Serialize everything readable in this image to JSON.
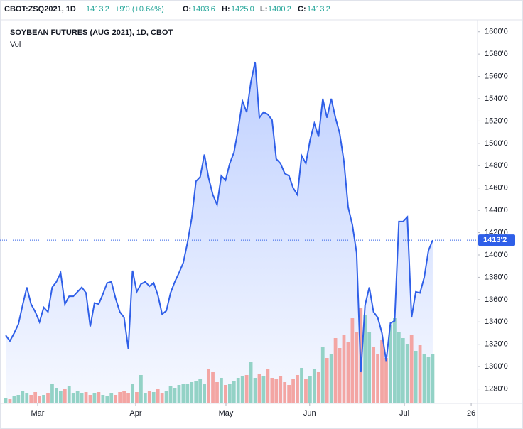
{
  "chart_data": {
    "type": "area",
    "header": {
      "symbol": "CBOT:ZSQ2021, 1D",
      "last": "1413'2",
      "change": "+9'0 (+0.64%)",
      "open_key": "O:",
      "open": "1403'6",
      "high_key": "H:",
      "high": "1425'0",
      "low_key": "L:",
      "low": "1400'2",
      "close_key": "C:",
      "close": "1413'2"
    },
    "title": "SOYBEAN FUTURES (AUG 2021), 1D, CBOT",
    "volume_label": "Vol",
    "last_price_label": "1413'2",
    "series": [
      {
        "name": "Price",
        "color": "#2f5fe8",
        "values": [
          1328,
          1323,
          1330,
          1338,
          1355,
          1371,
          1356,
          1349,
          1340,
          1353,
          1349,
          1371,
          1376,
          1384,
          1356,
          1363,
          1363,
          1367,
          1371,
          1366,
          1336,
          1357,
          1356,
          1365,
          1375,
          1376,
          1361,
          1349,
          1344,
          1316,
          1386,
          1367,
          1374,
          1376,
          1372,
          1375,
          1364,
          1347,
          1350,
          1366,
          1376,
          1384,
          1393,
          1411,
          1433,
          1466,
          1470,
          1490,
          1469,
          1454,
          1445,
          1471,
          1467,
          1482,
          1492,
          1513,
          1538,
          1528,
          1555,
          1573,
          1523,
          1528,
          1526,
          1521,
          1486,
          1482,
          1473,
          1471,
          1460,
          1454,
          1489,
          1482,
          1503,
          1518,
          1506,
          1540,
          1523,
          1540,
          1523,
          1509,
          1484,
          1443,
          1427,
          1402,
          1295,
          1355,
          1371,
          1349,
          1344,
          1330,
          1305,
          1339,
          1341,
          1430,
          1430,
          1434,
          1344,
          1367,
          1366,
          1380,
          1404,
          1413.25
        ]
      },
      {
        "name": "Vol",
        "up_color": "#93d2c6",
        "down_color": "#f3a5a3",
        "values": [
          8,
          6,
          10,
          12,
          18,
          14,
          12,
          16,
          10,
          12,
          14,
          28,
          22,
          18,
          20,
          24,
          15,
          18,
          14,
          16,
          12,
          14,
          16,
          12,
          10,
          14,
          12,
          16,
          18,
          14,
          28,
          16,
          40,
          14,
          18,
          16,
          20,
          14,
          18,
          24,
          22,
          26,
          28,
          28,
          30,
          32,
          34,
          28,
          48,
          44,
          30,
          36,
          26,
          28,
          32,
          36,
          38,
          40,
          58,
          36,
          42,
          38,
          48,
          36,
          34,
          38,
          30,
          26,
          34,
          40,
          50,
          34,
          38,
          48,
          44,
          80,
          64,
          70,
          92,
          78,
          96,
          86,
          120,
          100,
          135,
          124,
          100,
          80,
          70,
          90,
          64,
          110,
          120,
          100,
          92,
          84,
          96,
          74,
          82,
          70,
          66,
          70
        ]
      }
    ],
    "xlim": [
      -1.345,
      111.6
    ],
    "xticks": [
      {
        "value": 7.56,
        "label": "Mar"
      },
      {
        "value": 30.75,
        "label": "Apr"
      },
      {
        "value": 52.1,
        "label": "May"
      },
      {
        "value": 71.9,
        "label": "Jun"
      },
      {
        "value": 94.3,
        "label": "Jul"
      },
      {
        "value": 110.1,
        "label": "26"
      }
    ],
    "ylim": [
      1267,
      1610
    ],
    "yticks": [
      {
        "value": 1280,
        "label": "1280'0"
      },
      {
        "value": 1300,
        "label": "1300'0"
      },
      {
        "value": 1320,
        "label": "1320'0"
      },
      {
        "value": 1340,
        "label": "1340'0"
      },
      {
        "value": 1360,
        "label": "1360'0"
      },
      {
        "value": 1380,
        "label": "1380'0"
      },
      {
        "value": 1400,
        "label": "1400'0"
      },
      {
        "value": 1420,
        "label": "1420'0"
      },
      {
        "value": 1440,
        "label": "1440'0"
      },
      {
        "value": 1460,
        "label": "1460'0"
      },
      {
        "value": 1480,
        "label": "1480'0"
      },
      {
        "value": 1500,
        "label": "1500'0"
      },
      {
        "value": 1520,
        "label": "1520'0"
      },
      {
        "value": 1540,
        "label": "1540'0"
      },
      {
        "value": 1560,
        "label": "1560'0"
      },
      {
        "value": 1580,
        "label": "1580'0"
      },
      {
        "value": 1600,
        "label": "1600'0"
      }
    ],
    "volume_ylim": [
      0,
      150
    ]
  }
}
